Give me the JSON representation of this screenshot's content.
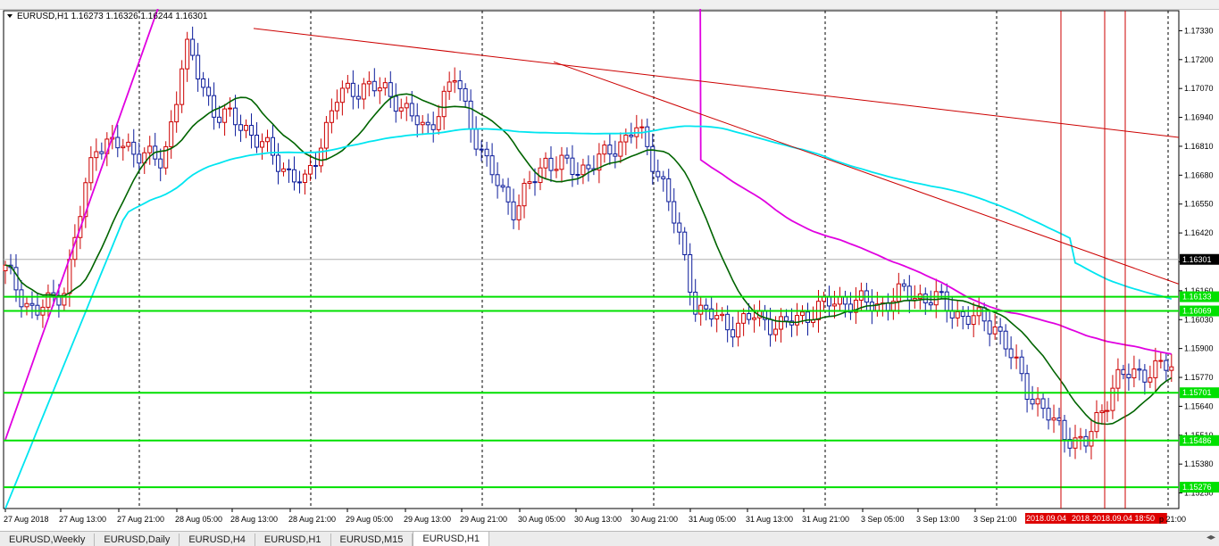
{
  "header": {
    "symbol": "EURUSD,H1",
    "ohlc": "1.16273 1.16326 1.16244 1.16301",
    "menu_icon": "triangle-down-icon"
  },
  "chart_data": {
    "type": "candlestick",
    "y_range": [
      1.1518,
      1.1742
    ],
    "price_ticks": [
      "1.17330",
      "1.17200",
      "1.17070",
      "1.16940",
      "1.16810",
      "1.16680",
      "1.16550",
      "1.16420",
      "1.16290",
      "1.16160",
      "1.16030",
      "1.15900",
      "1.15770",
      "1.15640",
      "1.15510",
      "1.15380",
      "1.15250"
    ],
    "time_labels": [
      "27 Aug 2018",
      "27 Aug 13:00",
      "27 Aug 21:00",
      "28 Aug 05:00",
      "28 Aug 13:00",
      "28 Aug 21:00",
      "29 Aug 05:00",
      "29 Aug 13:00",
      "29 Aug 21:00",
      "30 Aug 05:00",
      "30 Aug 13:00",
      "30 Aug 21:00",
      "31 Aug 05:00",
      "31 Aug 13:00",
      "31 Aug 21:00",
      "3 Sep 05:00",
      "3 Sep 13:00",
      "3 Sep 21:00"
    ],
    "highlighted_time_labels": [
      "2018.09.04",
      "2018.09.04",
      "2018.09.04 18:50"
    ],
    "last_time_label": "p 21:00",
    "current_price": "1.16301",
    "horizontal_levels": [
      "1.16133",
      "1.16069",
      "1.15701",
      "1.15486",
      "1.15276"
    ],
    "indicators": [
      "moving average (dark green)",
      "moving average (magenta)",
      "moving average (cyan)"
    ],
    "trendlines": 2,
    "vertical_markers": 3,
    "colors": {
      "bull": "#cc0000",
      "bear": "#0a1a9a",
      "ma_fast": "#006400",
      "ma_mid": "#e000e0",
      "ma_slow": "#00e5f0",
      "level": "#00e000",
      "trend": "#cc0000",
      "vline": "#cc0000",
      "price_label": "#000000"
    }
  },
  "tabs": [
    "EURUSD,Weekly",
    "EURUSD,Daily",
    "EURUSD,H4",
    "EURUSD,H1",
    "EURUSD,M15",
    "EURUSD,H1"
  ],
  "active_tab": 5,
  "tab_scroll_icon": "scroll-arrows-icon",
  "tab_scroll_glyph": "◂▸"
}
